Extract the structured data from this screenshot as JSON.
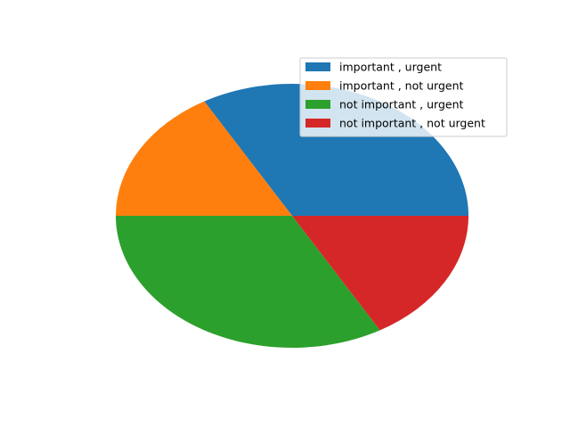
{
  "chart_data": {
    "type": "pie",
    "title": "",
    "labels": [
      "important , urgent",
      "important , not urgent",
      "not important , urgent",
      "not important , not urgent"
    ],
    "values": [
      33.3,
      16.7,
      33.3,
      16.7
    ],
    "colors": [
      "#1f77b4",
      "#ff7f0e",
      "#2ca02c",
      "#d62728"
    ],
    "start_angle_deg": 0,
    "direction": "counterclockwise",
    "legend_position": "top-right"
  }
}
